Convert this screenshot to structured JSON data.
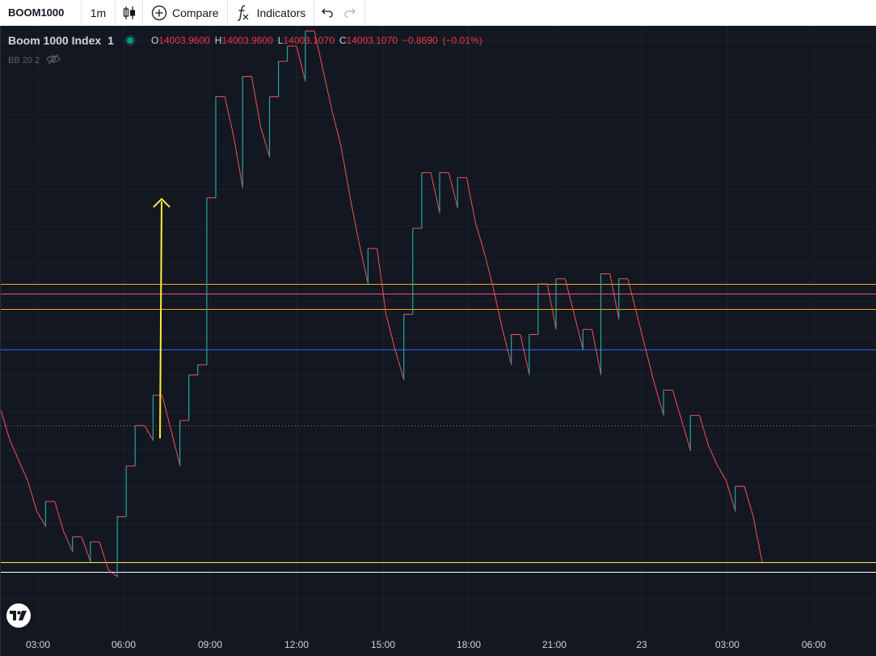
{
  "toolbar": {
    "symbol": "BOOM1000",
    "interval": "1m",
    "compare_label": "Compare",
    "indicators_label": "Indicators"
  },
  "legend": {
    "title": "Boom 1000 Index",
    "interval": "1",
    "open_key": "O",
    "open": "14003.9600",
    "high_key": "H",
    "high": "14003.9600",
    "low_key": "L",
    "low": "14003.1070",
    "close_key": "C",
    "close": "14003.1070",
    "change": "−0.8690",
    "change_pct": "(−0.01%)"
  },
  "indicator_legend": {
    "label": "BB 20 2"
  },
  "colors": {
    "background": "#131722",
    "grid": "#1e222d",
    "up": "#26a69a",
    "down": "#ef5350",
    "orange_line": "#f5a623",
    "pink_line": "#e8557a",
    "blue_line": "#2962ff",
    "yellow_line": "#ffeb3b",
    "white_line": "#ffffff",
    "annotation": "#ffeb3b"
  },
  "chart_data": {
    "type": "line",
    "x_ticks": [
      "03:00",
      "06:00",
      "09:00",
      "12:00",
      "15:00",
      "18:00",
      "21:00",
      "23",
      "03:00",
      "06:00"
    ],
    "series": [
      {
        "values": [
          14004.6,
          14004.3,
          14004.1,
          14003.9,
          14003.6,
          14003.45,
          14003.7,
          14003.4,
          14003.2,
          14003.35,
          14003.1,
          14003.3,
          14003.02,
          14002.95,
          14003.55,
          14004.05,
          14004.45,
          14004.3,
          14004.75,
          14004.4,
          14004.05,
          14004.5,
          14004.95,
          14005.05,
          14006.7,
          14007.7,
          14007.3,
          14006.8,
          14007.9,
          14007.4,
          14007.1,
          14007.7,
          14008.05,
          14008.2,
          14007.85,
          14008.35,
          14007.95,
          14007.55,
          14007.2,
          14006.7,
          14006.25,
          14005.85,
          14006.2,
          14005.55,
          14005.2,
          14004.9,
          14005.55,
          14006.4,
          14006.95,
          14006.55,
          14006.95,
          14006.6,
          14006.9,
          14006.45,
          14006.15,
          14005.8,
          14005.4,
          14005.05,
          14005.35,
          14004.95,
          14005.35,
          14005.85,
          14005.4,
          14005.9,
          14005.55,
          14005.2,
          14005.4,
          14004.95,
          14005.95,
          14005.5,
          14005.9,
          14005.55,
          14005.2,
          14004.85,
          14004.55,
          14004.8,
          14004.5,
          14004.2,
          14004.55,
          14004.25,
          14004.05,
          14003.9,
          14003.6,
          14003.85,
          14003.55,
          14003.1
        ]
      }
    ],
    "horizontal_lines": [
      {
        "color": "orange",
        "price": 14005.85
      },
      {
        "color": "pink",
        "price": 14005.75
      },
      {
        "color": "orange",
        "price": 14005.6
      },
      {
        "color": "blue",
        "price": 14005.2
      },
      {
        "color": "dotted-red",
        "price": 14004.45
      },
      {
        "color": "yellow",
        "price": 14003.1
      },
      {
        "color": "white",
        "price": 14003.0
      }
    ],
    "annotation": {
      "type": "arrow-up",
      "color": "yellow"
    },
    "grid": true,
    "legend_position": "top-left"
  }
}
